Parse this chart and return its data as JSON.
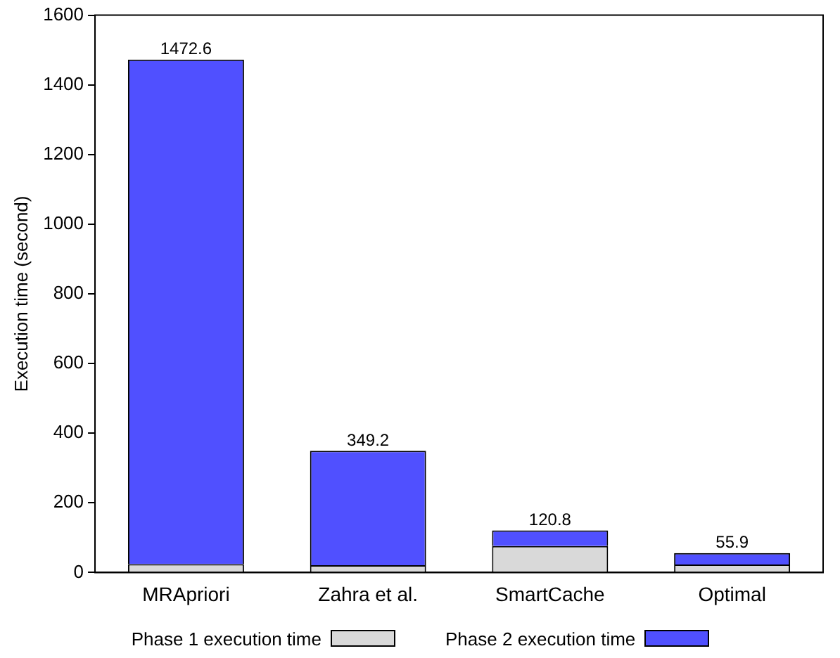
{
  "chart_data": {
    "type": "bar",
    "stacked": true,
    "ylabel": "Execution time (second)",
    "categories": [
      "MRApriori",
      "Zahra et al.",
      "SmartCache",
      "Optimal"
    ],
    "series": [
      {
        "name": "Phase 1 execution time",
        "color": "#d9d9d9",
        "values": [
          24,
          21,
          76,
          23
        ]
      },
      {
        "name": "Phase 2 execution time",
        "color": "#5050ff",
        "values": [
          1448.6,
          328.2,
          44.8,
          32.9
        ]
      }
    ],
    "totals": [
      "1472.6",
      "349.2",
      "120.8",
      "55.9"
    ],
    "ylim": [
      0,
      1600
    ],
    "yticks": [
      0,
      200,
      400,
      600,
      800,
      1000,
      1200,
      1400,
      1600
    ],
    "grid": false,
    "legend": "bottom"
  }
}
